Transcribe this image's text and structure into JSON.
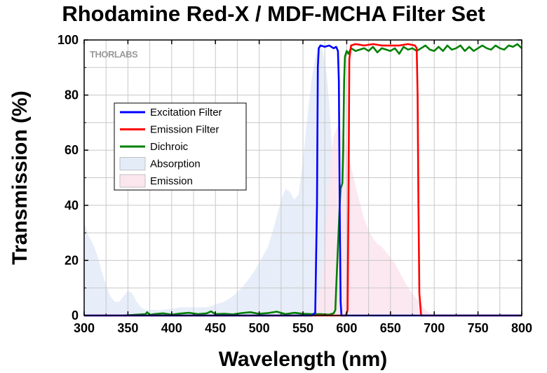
{
  "chart_data": {
    "type": "line",
    "title": "Rhodamine Red-X / MDF-MCHA Filter Set",
    "xlabel": "Wavelength (nm)",
    "ylabel": "Transmission (%)",
    "xlim": [
      300,
      800
    ],
    "ylim": [
      0,
      100
    ],
    "xticks": [
      300,
      350,
      400,
      450,
      500,
      550,
      600,
      650,
      700,
      750,
      800
    ],
    "yticks": [
      0,
      20,
      40,
      60,
      80,
      100
    ],
    "grid": true,
    "legend_position": "upper-left",
    "watermark": "THORLABS",
    "series": [
      {
        "name": "Excitation Filter",
        "color": "#0000ff",
        "kind": "line",
        "x": [
          300,
          560,
          564,
          566,
          567,
          568,
          570,
          575,
          580,
          585,
          588,
          590,
          591,
          592,
          593,
          594,
          800
        ],
        "y": [
          0,
          0,
          1,
          40,
          90,
          97,
          98,
          97.5,
          98,
          97,
          97.5,
          96,
          85,
          40,
          5,
          0,
          0
        ]
      },
      {
        "name": "Emission Filter",
        "color": "#ff0000",
        "kind": "line",
        "x": [
          300,
          599,
          601,
          602,
          603,
          605,
          610,
          620,
          630,
          640,
          650,
          660,
          670,
          678,
          680,
          681,
          682,
          683,
          685,
          800
        ],
        "y": [
          0,
          0,
          2,
          40,
          93,
          98,
          98.5,
          98,
          98.5,
          98,
          98,
          98,
          98.5,
          98,
          97,
          80,
          40,
          8,
          0,
          0
        ]
      },
      {
        "name": "Dichroic",
        "color": "#008000",
        "kind": "line",
        "x": [
          345,
          360,
          370,
          372,
          375,
          380,
          390,
          400,
          410,
          420,
          430,
          440,
          445,
          450,
          460,
          470,
          480,
          490,
          500,
          510,
          520,
          530,
          540,
          550,
          560,
          570,
          575,
          580,
          585,
          587,
          588,
          590,
          592,
          593,
          594,
          595,
          596,
          597,
          598,
          600,
          602,
          605,
          610,
          615,
          620,
          625,
          630,
          635,
          640,
          645,
          650,
          655,
          660,
          665,
          670,
          675,
          680,
          685,
          690,
          695,
          700,
          705,
          710,
          715,
          720,
          725,
          730,
          735,
          740,
          745,
          750,
          755,
          760,
          765,
          770,
          775,
          780,
          785,
          790,
          795,
          800
        ],
        "y": [
          0,
          0.3,
          0.5,
          1.2,
          0.2,
          0.5,
          0.8,
          0.3,
          0.7,
          1.0,
          0.5,
          0.8,
          1.5,
          0.5,
          0.6,
          0.4,
          0.9,
          1.2,
          0.6,
          0.9,
          1.4,
          0.5,
          1.0,
          0.6,
          0.5,
          0.5,
          0.4,
          0.3,
          0.8,
          2,
          10,
          25,
          40,
          46,
          47,
          48,
          60,
          85,
          94,
          96,
          95,
          97,
          96,
          96.5,
          97,
          96,
          97.5,
          95.5,
          97,
          96.5,
          96,
          97,
          95,
          97.5,
          96.5,
          97,
          96,
          97,
          98,
          96.5,
          96,
          97.5,
          96,
          98,
          96.5,
          97,
          98,
          96,
          97.5,
          96,
          97,
          98,
          97,
          96.5,
          98,
          97,
          96.5,
          98,
          97.5,
          98.5,
          97
        ]
      },
      {
        "name": "Absorption",
        "color": "#e4ecf8",
        "kind": "area",
        "x": [
          300,
          305,
          310,
          315,
          320,
          325,
          330,
          335,
          340,
          345,
          350,
          355,
          360,
          365,
          370,
          380,
          390,
          400,
          410,
          420,
          430,
          440,
          450,
          460,
          470,
          480,
          490,
          500,
          505,
          510,
          515,
          520,
          525,
          530,
          535,
          540,
          545,
          550,
          555,
          560,
          565,
          568,
          570,
          572,
          575,
          578,
          580,
          583,
          585,
          588,
          590,
          592,
          595,
          600,
          605,
          610
        ],
        "y": [
          34,
          29,
          26,
          22,
          16,
          11,
          7,
          5,
          5,
          7,
          9,
          8,
          5,
          3,
          2,
          2,
          2,
          2.5,
          3,
          3,
          3,
          3,
          4,
          5,
          7,
          10,
          14,
          19,
          22,
          25,
          30,
          36,
          42,
          46,
          45,
          42,
          44,
          56,
          72,
          86,
          95,
          98,
          99,
          97,
          92,
          85,
          77,
          62,
          48,
          36,
          26,
          18,
          10,
          3,
          1,
          0
        ]
      },
      {
        "name": "Emission",
        "color": "#fce6ee",
        "kind": "area",
        "x": [
          560,
          565,
          570,
          575,
          580,
          585,
          590,
          595,
          600,
          605,
          610,
          615,
          620,
          625,
          630,
          635,
          640,
          645,
          650,
          655,
          660,
          665,
          670,
          675,
          680,
          685,
          690,
          695,
          700
        ],
        "y": [
          0,
          3,
          10,
          25,
          50,
          65,
          69,
          67,
          61,
          54,
          47,
          41,
          35,
          31,
          28,
          26,
          25,
          23,
          21,
          19,
          16,
          13,
          10,
          8,
          6,
          4,
          2,
          1,
          0
        ]
      }
    ]
  }
}
